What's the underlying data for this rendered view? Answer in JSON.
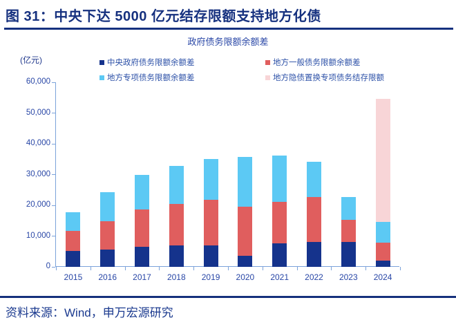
{
  "header": {
    "title": "图 31：中央下达 5000 亿元结存限额支持地方化债"
  },
  "footer": {
    "source": "资料来源：Wind，申万宏源研究"
  },
  "chart_data": {
    "type": "bar",
    "stacked": true,
    "title": "政府债务限额余额差",
    "unit_label": "(亿元)",
    "xlabel": "",
    "ylabel": "亿元",
    "ylim": [
      0,
      60000
    ],
    "ytick_interval": 10000,
    "ytick_labels": [
      "0",
      "10,000",
      "20,000",
      "30,000",
      "40,000",
      "50,000",
      "60,000"
    ],
    "grid": false,
    "legend_position": "top",
    "categories": [
      "2015",
      "2016",
      "2017",
      "2018",
      "2019",
      "2020",
      "2021",
      "2022",
      "2023",
      "2024"
    ],
    "series": [
      {
        "name": "中央政府债务限额余额差",
        "color": "#15338C",
        "values": [
          5100,
          5700,
          6500,
          7000,
          7000,
          3700,
          7600,
          8200,
          8000,
          2000
        ]
      },
      {
        "name": "地方一般债务限额余额差",
        "color": "#E05E5E",
        "values": [
          6600,
          9100,
          12100,
          13500,
          14800,
          15800,
          13600,
          14600,
          7200,
          5800
        ]
      },
      {
        "name": "地方专项债务限额余额差",
        "color": "#5CC9F4",
        "values": [
          6100,
          9500,
          11300,
          12200,
          13300,
          16300,
          15000,
          11400,
          7500,
          6800
        ]
      },
      {
        "name": "地方隐债置换专项债务结存限额",
        "color": "#F8D5D7",
        "values": [
          0,
          0,
          0,
          0,
          0,
          0,
          0,
          0,
          0,
          40000
        ]
      }
    ]
  }
}
